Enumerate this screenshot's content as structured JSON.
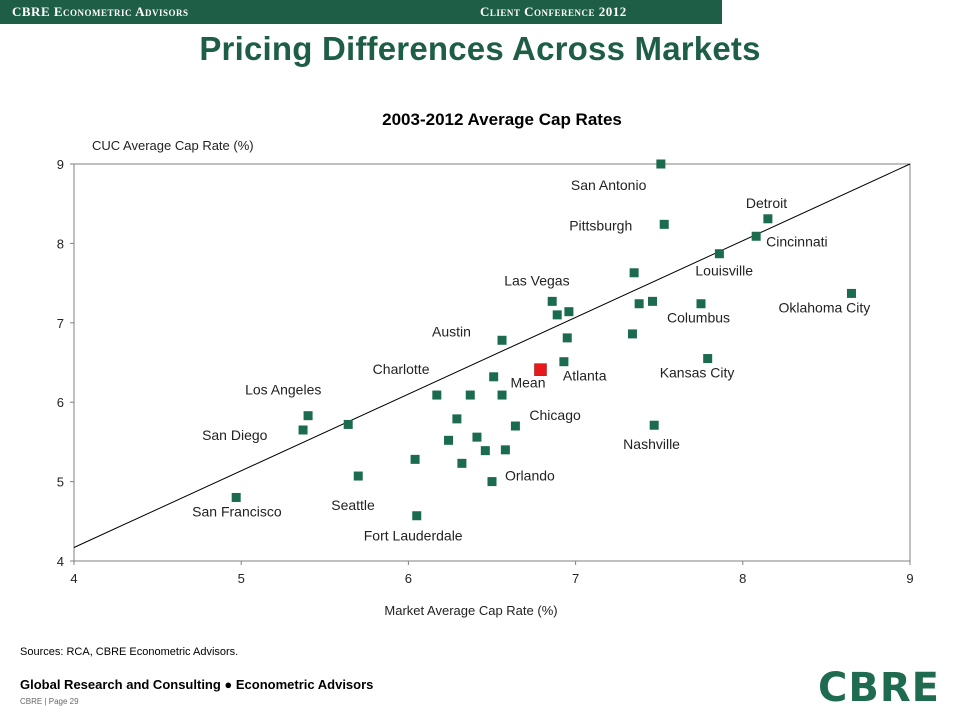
{
  "header": {
    "left": "CBRE Econometric Advisors",
    "right": "Client Conference 2012",
    "bar_color": "#1f5e46"
  },
  "title": "Pricing Differences Across Markets",
  "chart_data": {
    "type": "scatter",
    "title": "2003-2012 Average Cap Rates",
    "xlabel": "Market Average Cap Rate (%)",
    "ylabel": "CUC Average Cap Rate (%)",
    "xlim": [
      4,
      9
    ],
    "ylim": [
      4,
      9
    ],
    "xticks": [
      "4",
      "5",
      "6",
      "7",
      "8",
      "9"
    ],
    "yticks": [
      "4",
      "5",
      "6",
      "7",
      "8",
      "9"
    ],
    "grid": false,
    "reference_line": "y = x",
    "marker_color": "#1b6b4e",
    "mean_color": "#e8191a",
    "points": [
      {
        "label": "San Antonio",
        "x": 7.51,
        "y": 9.0
      },
      {
        "label": "Pittsburgh",
        "x": 7.53,
        "y": 8.24
      },
      {
        "label": "Detroit",
        "x": 8.15,
        "y": 8.31
      },
      {
        "label": "Cincinnati",
        "x": 8.08,
        "y": 8.09
      },
      {
        "label": "Louisville",
        "x": 7.86,
        "y": 7.87
      },
      {
        "label": "",
        "x": 7.35,
        "y": 7.63
      },
      {
        "label": "Oklahoma City",
        "x": 8.65,
        "y": 7.37
      },
      {
        "label": "",
        "x": 7.38,
        "y": 7.24
      },
      {
        "label": "",
        "x": 7.46,
        "y": 7.27
      },
      {
        "label": "Columbus",
        "x": 7.75,
        "y": 7.24
      },
      {
        "label": "Las Vegas",
        "x": 6.86,
        "y": 7.27
      },
      {
        "label": "",
        "x": 6.89,
        "y": 7.1
      },
      {
        "label": "",
        "x": 6.96,
        "y": 7.14
      },
      {
        "label": "Austin",
        "x": 6.56,
        "y": 6.78
      },
      {
        "label": "",
        "x": 6.95,
        "y": 6.81
      },
      {
        "label": "",
        "x": 7.34,
        "y": 6.86
      },
      {
        "label": "Atlanta",
        "x": 6.93,
        "y": 6.51
      },
      {
        "label": "Kansas City",
        "x": 7.79,
        "y": 6.55
      },
      {
        "label": "Charlotte",
        "x": 6.51,
        "y": 6.32
      },
      {
        "label": "",
        "x": 6.17,
        "y": 6.09
      },
      {
        "label": "",
        "x": 6.37,
        "y": 6.09
      },
      {
        "label": "",
        "x": 6.56,
        "y": 6.09
      },
      {
        "label": "Chicago",
        "x": 6.64,
        "y": 5.7
      },
      {
        "label": "Nashville",
        "x": 7.47,
        "y": 5.71
      },
      {
        "label": "Los Angeles",
        "x": 5.4,
        "y": 5.83
      },
      {
        "label": "San Diego",
        "x": 5.37,
        "y": 5.65
      },
      {
        "label": "",
        "x": 5.64,
        "y": 5.72
      },
      {
        "label": "",
        "x": 6.29,
        "y": 5.79
      },
      {
        "label": "",
        "x": 6.24,
        "y": 5.52
      },
      {
        "label": "",
        "x": 6.41,
        "y": 5.56
      },
      {
        "label": "",
        "x": 6.46,
        "y": 5.39
      },
      {
        "label": "",
        "x": 6.58,
        "y": 5.4
      },
      {
        "label": "",
        "x": 6.04,
        "y": 5.28
      },
      {
        "label": "",
        "x": 6.32,
        "y": 5.23
      },
      {
        "label": "Seattle",
        "x": 5.7,
        "y": 5.07
      },
      {
        "label": "Orlando",
        "x": 6.5,
        "y": 5.0
      },
      {
        "label": "San Francisco",
        "x": 4.97,
        "y": 4.8
      },
      {
        "label": "Fort Lauderdale",
        "x": 6.05,
        "y": 4.57
      }
    ],
    "mean": {
      "label": "Mean",
      "x": 6.79,
      "y": 6.41
    }
  },
  "sources": "Sources: RCA, CBRE Econometric Advisors.",
  "footer": {
    "line": "Global Research and Consulting ● Econometric Advisors",
    "page_note": "CBRE | Page 29",
    "logo": "CBRE"
  }
}
